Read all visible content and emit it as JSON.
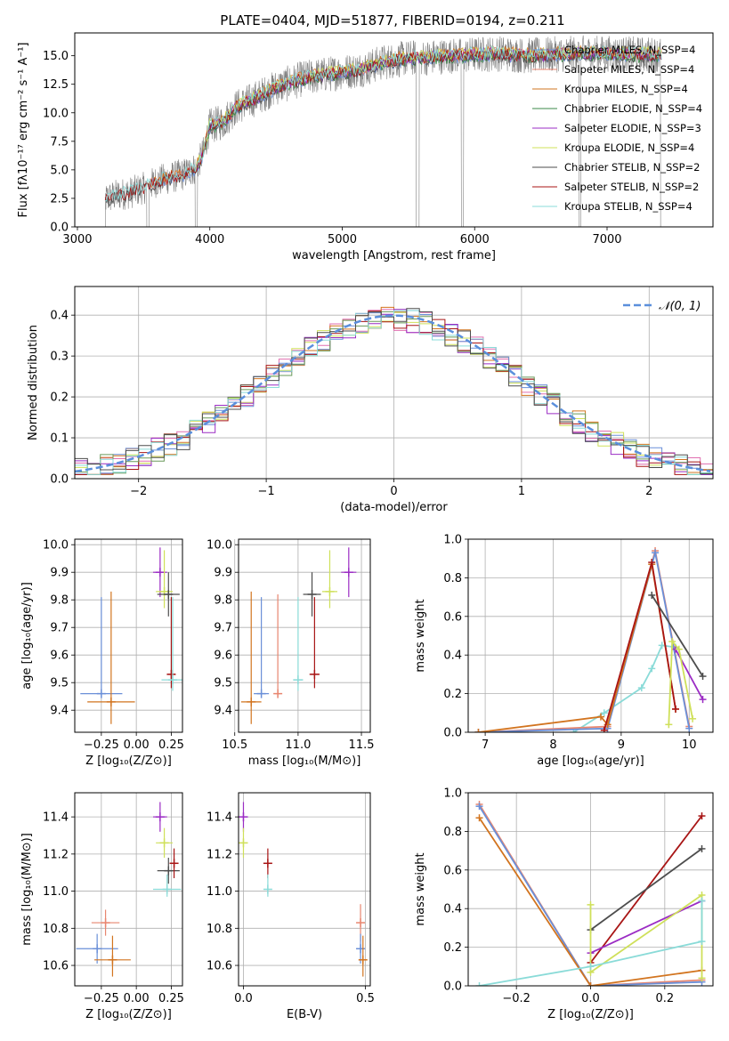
{
  "colors": {
    "chabrier_miles": "#6a8fd8",
    "salpeter_miles": "#e8866f",
    "kroupa_miles": "#d2741f",
    "chabrier_elodie": "#3b8a4a",
    "salpeter_elodie": "#9b2cc4",
    "kroupa_elodie": "#cfe05a",
    "chabrier_stelib": "#4d4d4d",
    "salpeter_stelib": "#a81515",
    "kroupa_stelib": "#8adbd8",
    "data": "#808080",
    "normal": "#5b8fdc",
    "salpeter_hist": "#e06fb0",
    "elodie_hist": "#6a9a5a"
  },
  "chart_data": [
    {
      "id": "spectrum",
      "type": "line",
      "title": "PLATE=0404, MJD=51877, FIBERID=0194, z=0.211",
      "xlabel": "wavelength [Angstrom, rest frame]",
      "ylabel": "Flux [fλ10⁻¹⁷ erg cm⁻² s⁻¹ A⁻¹]",
      "xlim": [
        2980,
        7800
      ],
      "ylim": [
        0,
        17
      ],
      "xticks": [
        "3000",
        "4000",
        "5000",
        "6000",
        "7000"
      ],
      "yticks": [
        "0.0",
        "2.5",
        "5.0",
        "7.5",
        "10.0",
        "12.5",
        "15.0"
      ],
      "legend": "upper right",
      "legend_entries": [
        "Chabrier MILES, N_SSP=4",
        "Salpeter MILES, N_SSP=4",
        "Kroupa MILES, N_SSP=4",
        "Chabrier ELODIE, N_SSP=4",
        "Salpeter ELODIE, N_SSP=3",
        "Kroupa ELODIE, N_SSP=4",
        "Chabrier STELIB, N_SSP=2",
        "Salpeter STELIB, N_SSP=2",
        "Kroupa STELIB, N_SSP=4"
      ],
      "continuum": {
        "x": [
          3200,
          3300,
          3400,
          3500,
          3600,
          3700,
          3800,
          3900,
          3950,
          4000,
          4100,
          4200,
          4300,
          4400,
          4500,
          4600,
          4700,
          4800,
          4900,
          5000,
          5100,
          5200,
          5300,
          5400,
          5500,
          5600,
          5700,
          5800,
          5900,
          6000,
          6200,
          6400,
          6600,
          6800,
          7000,
          7200,
          7400
        ],
        "y": [
          2.4,
          2.8,
          3.0,
          3.4,
          4.0,
          4.3,
          4.6,
          5.2,
          6.5,
          8.8,
          9.2,
          10.5,
          11.0,
          11.6,
          12.2,
          12.6,
          13.0,
          13.2,
          13.4,
          13.6,
          13.7,
          14.0,
          14.4,
          14.6,
          14.8,
          14.8,
          14.9,
          15.0,
          15.0,
          15.1,
          15.2,
          15.0,
          15.1,
          15.2,
          15.2,
          15.1,
          15.1
        ]
      }
    },
    {
      "id": "residuals",
      "type": "histogram",
      "xlabel": "(data-model)/error",
      "ylabel": "Normed distribution",
      "xlim": [
        -2.5,
        2.5
      ],
      "ylim": [
        0,
        0.47
      ],
      "xticks": [
        "−2",
        "−1",
        "0",
        "1",
        "2"
      ],
      "yticks": [
        "0.0",
        "0.1",
        "0.2",
        "0.3",
        "0.4"
      ],
      "legend": "upper right",
      "legend_entries": [
        "𝒩(0, 1)"
      ],
      "bin_width": 0.1
    },
    {
      "id": "age_vs_Z",
      "type": "scatter",
      "xlabel": "Z [log₁₀(Z/Z⊙)]",
      "ylabel": "age  [log₁₀(age/yr)]",
      "xlim": [
        -0.44,
        0.33
      ],
      "ylim": [
        9.32,
        10.02
      ],
      "xticks": [
        "−0.25",
        "0.00",
        "0.25"
      ],
      "yticks": [
        "9.4",
        "9.5",
        "9.6",
        "9.7",
        "9.8",
        "9.9",
        "10.0"
      ],
      "points": [
        {
          "series": "chabrier_miles",
          "x": -0.25,
          "xerr": 0.15,
          "y": 9.46,
          "yerr": [
            0.0,
            0.35
          ]
        },
        {
          "series": "kroupa_miles",
          "x": -0.18,
          "xerr": 0.17,
          "y": 9.43,
          "yerr": [
            0.08,
            0.4
          ]
        },
        {
          "series": "salpeter_elodie",
          "x": 0.17,
          "xerr": 0.05,
          "y": 9.9,
          "yerr": [
            0.09,
            0.09
          ]
        },
        {
          "series": "kroupa_elodie",
          "x": 0.2,
          "xerr": 0.06,
          "y": 9.83,
          "yerr": [
            0.06,
            0.15
          ]
        },
        {
          "series": "chabrier_stelib",
          "x": 0.23,
          "xerr": 0.08,
          "y": 9.82,
          "yerr": [
            0.08,
            0.08
          ]
        },
        {
          "series": "salpeter_stelib",
          "x": 0.25,
          "xerr": 0.03,
          "y": 9.53,
          "yerr": [
            0.05,
            0.28
          ]
        },
        {
          "series": "kroupa_stelib",
          "x": 0.26,
          "xerr": 0.08,
          "y": 9.51,
          "yerr": [
            0.04,
            0.3
          ]
        }
      ]
    },
    {
      "id": "age_vs_mass",
      "type": "scatter",
      "xlabel": "mass [log₁₀(M/M⊙)]",
      "ylabel": "",
      "xlim": [
        10.53,
        11.57
      ],
      "ylim": [
        9.32,
        10.02
      ],
      "xticks": [
        "10.5",
        "11.0",
        "11.5"
      ],
      "yticks": [
        "9.4",
        "9.5",
        "9.6",
        "9.7",
        "9.8",
        "9.9",
        "10.0"
      ],
      "points": [
        {
          "series": "kroupa_miles",
          "x": 10.63,
          "xerr": 0.08,
          "y": 9.43,
          "yerr": [
            0.08,
            0.4
          ]
        },
        {
          "series": "chabrier_miles",
          "x": 10.71,
          "xerr": 0.06,
          "y": 9.46,
          "yerr": [
            0.0,
            0.35
          ]
        },
        {
          "series": "salpeter_miles",
          "x": 10.84,
          "xerr": 0.02,
          "y": 9.46,
          "yerr": [
            0.0,
            0.36
          ]
        },
        {
          "series": "kroupa_stelib",
          "x": 11.0,
          "xerr": 0.04,
          "y": 9.51,
          "yerr": [
            0.04,
            0.3
          ]
        },
        {
          "series": "salpeter_stelib",
          "x": 11.13,
          "xerr": 0.04,
          "y": 9.53,
          "yerr": [
            0.05,
            0.28
          ]
        },
        {
          "series": "chabrier_stelib",
          "x": 11.11,
          "xerr": 0.07,
          "y": 9.82,
          "yerr": [
            0.08,
            0.08
          ]
        },
        {
          "series": "kroupa_elodie",
          "x": 11.25,
          "xerr": 0.06,
          "y": 9.83,
          "yerr": [
            0.06,
            0.15
          ]
        },
        {
          "series": "salpeter_elodie",
          "x": 11.4,
          "xerr": 0.06,
          "y": 9.9,
          "yerr": [
            0.09,
            0.09
          ]
        }
      ]
    },
    {
      "id": "weight_vs_age",
      "type": "line",
      "xlabel": "age  [log₁₀(age/yr)]",
      "ylabel": "mass weight",
      "xlim": [
        6.75,
        10.35
      ],
      "ylim": [
        0,
        1.0
      ],
      "xticks": [
        "7",
        "8",
        "9",
        "10"
      ],
      "yticks": [
        "0.0",
        "0.2",
        "0.4",
        "0.6",
        "0.8",
        "1.0"
      ],
      "series": [
        {
          "series": "kroupa_stelib",
          "x": [
            8.3,
            8.75,
            9.3,
            9.45,
            9.6,
            9.8
          ],
          "y": [
            0.0,
            0.1,
            0.23,
            0.33,
            0.45,
            0.44
          ]
        },
        {
          "series": "salpeter_miles",
          "x": [
            6.9,
            8.8,
            9.5,
            10.0
          ],
          "y": [
            0.0,
            0.03,
            0.94,
            0.03
          ]
        },
        {
          "series": "chabrier_miles",
          "x": [
            6.9,
            8.8,
            9.5,
            10.0
          ],
          "y": [
            0.0,
            0.02,
            0.93,
            0.02
          ]
        },
        {
          "series": "kroupa_miles",
          "x": [
            6.9,
            8.7,
            8.8,
            9.45,
            9.8
          ],
          "y": [
            0.0,
            0.08,
            0.04,
            0.87,
            0.12
          ]
        },
        {
          "series": "salpeter_stelib",
          "x": [
            8.75,
            9.45,
            9.8
          ],
          "y": [
            0.01,
            0.88,
            0.12
          ]
        },
        {
          "series": "chabrier_stelib",
          "x": [
            9.45,
            10.2
          ],
          "y": [
            0.71,
            0.29
          ]
        },
        {
          "series": "salpeter_elodie",
          "x": [
            9.8,
            10.2
          ],
          "y": [
            0.43,
            0.17
          ]
        },
        {
          "series": "kroupa_elodie",
          "x": [
            9.7,
            9.75,
            9.85,
            10.05
          ],
          "y": [
            0.04,
            0.47,
            0.43,
            0.07
          ]
        }
      ]
    },
    {
      "id": "mass_vs_Z",
      "type": "scatter",
      "xlabel": "Z [log₁₀(Z/Z⊙)]",
      "ylabel": "mass [log₁₀(M/M⊙)]",
      "xlim": [
        -0.44,
        0.33
      ],
      "ylim": [
        10.49,
        11.53
      ],
      "xticks": [
        "−0.25",
        "0.00",
        "0.25"
      ],
      "yticks": [
        "10.6",
        "10.8",
        "11.0",
        "11.2",
        "11.4"
      ],
      "points": [
        {
          "series": "salpeter_miles",
          "x": -0.22,
          "xerr": 0.1,
          "y": 10.83,
          "yerr": [
            0.07,
            0.07
          ]
        },
        {
          "series": "chabrier_miles",
          "x": -0.28,
          "xerr": 0.15,
          "y": 10.69,
          "yerr": [
            0.08,
            0.08
          ]
        },
        {
          "series": "kroupa_miles",
          "x": -0.17,
          "xerr": 0.13,
          "y": 10.63,
          "yerr": [
            0.09,
            0.13
          ]
        },
        {
          "series": "salpeter_elodie",
          "x": 0.17,
          "xerr": 0.05,
          "y": 11.4,
          "yerr": [
            0.08,
            0.08
          ]
        },
        {
          "series": "kroupa_elodie",
          "x": 0.2,
          "xerr": 0.06,
          "y": 11.26,
          "yerr": [
            0.08,
            0.08
          ]
        },
        {
          "series": "chabrier_stelib",
          "x": 0.23,
          "xerr": 0.08,
          "y": 11.11,
          "yerr": [
            0.07,
            0.07
          ]
        },
        {
          "series": "salpeter_stelib",
          "x": 0.27,
          "xerr": 0.03,
          "y": 11.15,
          "yerr": [
            0.08,
            0.08
          ]
        },
        {
          "series": "kroupa_stelib",
          "x": 0.22,
          "xerr": 0.1,
          "y": 11.01,
          "yerr": [
            0.04,
            0.08
          ]
        }
      ]
    },
    {
      "id": "mass_vs_EBV",
      "type": "scatter",
      "xlabel": "E(B-V)",
      "ylabel": "",
      "xlim": [
        -0.02,
        0.52
      ],
      "ylim": [
        10.49,
        11.53
      ],
      "xticks": [
        "0.0",
        "0.5"
      ],
      "yticks": [
        "10.6",
        "10.8",
        "11.0",
        "11.2",
        "11.4"
      ],
      "points": [
        {
          "series": "salpeter_elodie",
          "x": 0.0,
          "xerr": 0.0,
          "y": 11.4,
          "yerr": [
            0.08,
            0.08
          ]
        },
        {
          "series": "kroupa_elodie",
          "x": 0.0,
          "xerr": 0.0,
          "y": 11.26,
          "yerr": [
            0.08,
            0.08
          ]
        },
        {
          "series": "salpeter_stelib",
          "x": 0.1,
          "xerr": 0.0,
          "y": 11.15,
          "yerr": [
            0.08,
            0.08
          ]
        },
        {
          "series": "kroupa_stelib",
          "x": 0.1,
          "xerr": 0.0,
          "y": 11.01,
          "yerr": [
            0.04,
            0.08
          ]
        },
        {
          "series": "salpeter_miles",
          "x": 0.48,
          "xerr": 0.0,
          "y": 10.83,
          "yerr": [
            0.1,
            0.1
          ]
        },
        {
          "series": "chabrier_miles",
          "x": 0.48,
          "xerr": 0.0,
          "y": 10.69,
          "yerr": [
            0.08,
            0.08
          ]
        },
        {
          "series": "kroupa_miles",
          "x": 0.49,
          "xerr": 0.0,
          "y": 10.63,
          "yerr": [
            0.09,
            0.13
          ]
        }
      ]
    },
    {
      "id": "weight_vs_Z",
      "type": "line",
      "xlabel": "Z [log₁₀(Z/Z⊙)]",
      "ylabel": "mass weight",
      "xlim": [
        -0.33,
        0.33
      ],
      "ylim": [
        0,
        1.0
      ],
      "xticks": [
        "−0.2",
        "0.0",
        "0.2"
      ],
      "yticks": [
        "0.0",
        "0.2",
        "0.4",
        "0.6",
        "0.8",
        "1.0"
      ],
      "series": [
        {
          "series": "salpeter_miles",
          "x": [
            -0.3,
            0.0,
            0.3
          ],
          "y": [
            0.94,
            0.0,
            0.03
          ]
        },
        {
          "series": "chabrier_miles",
          "x": [
            -0.3,
            0.0,
            0.3
          ],
          "y": [
            0.93,
            0.0,
            0.02
          ]
        },
        {
          "series": "kroupa_miles",
          "x": [
            -0.3,
            0.0,
            0.3
          ],
          "y": [
            0.87,
            0.0,
            0.08
          ]
        },
        {
          "series": "salpeter_stelib",
          "x": [
            0.0,
            0.3
          ],
          "y": [
            0.12,
            0.88
          ]
        },
        {
          "series": "chabrier_stelib",
          "x": [
            0.0,
            0.3
          ],
          "y": [
            0.29,
            0.71
          ]
        },
        {
          "series": "salpeter_elodie",
          "x": [
            0.0,
            0.3
          ],
          "y": [
            0.17,
            0.44
          ]
        },
        {
          "series": "kroupa_elodie",
          "x": [
            0.0,
            0.0,
            0.3,
            0.3
          ],
          "y": [
            0.42,
            0.07,
            0.47,
            0.04
          ]
        },
        {
          "series": "kroupa_stelib",
          "x": [
            -0.3,
            0.0,
            0.3,
            0.3
          ],
          "y": [
            0.0,
            0.1,
            0.23,
            0.44
          ]
        }
      ]
    }
  ]
}
